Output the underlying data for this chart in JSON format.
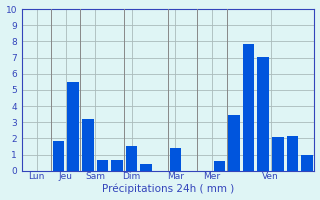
{
  "bars": [
    {
      "x": 1,
      "value": 0.0
    },
    {
      "x": 2,
      "value": 0.0
    },
    {
      "x": 3,
      "value": 1.85
    },
    {
      "x": 4,
      "value": 5.5
    },
    {
      "x": 5,
      "value": 3.2
    },
    {
      "x": 6,
      "value": 0.65
    },
    {
      "x": 7,
      "value": 0.65
    },
    {
      "x": 8,
      "value": 1.55
    },
    {
      "x": 9,
      "value": 0.45
    },
    {
      "x": 10,
      "value": 0.0
    },
    {
      "x": 11,
      "value": 1.4
    },
    {
      "x": 12,
      "value": 0.0
    },
    {
      "x": 13,
      "value": 0.0
    },
    {
      "x": 14,
      "value": 0.6
    },
    {
      "x": 15,
      "value": 3.45
    },
    {
      "x": 16,
      "value": 7.85
    },
    {
      "x": 17,
      "value": 7.05
    },
    {
      "x": 18,
      "value": 2.1
    },
    {
      "x": 19,
      "value": 2.15
    },
    {
      "x": 20,
      "value": 1.0
    }
  ],
  "vlines": [
    2.5,
    4.5,
    7.5,
    10.5,
    12.5,
    14.5
  ],
  "bar_color": "#0055dd",
  "bar_width": 0.8,
  "xlabel": "Précipitations 24h ( mm )",
  "ylim": [
    0,
    10
  ],
  "yticks": [
    0,
    1,
    2,
    3,
    4,
    5,
    6,
    7,
    8,
    9,
    10
  ],
  "day_tick_positions": [
    1.5,
    3.5,
    5.5,
    8.0,
    11.0,
    13.5,
    17.5
  ],
  "day_labels": [
    "Lun",
    "Jeu",
    "Sam",
    "Dim",
    "Mar",
    "Mer",
    "Ven"
  ],
  "bg_color": "#dff5f5",
  "grid_color": "#aabbbb",
  "vline_color": "#888888",
  "text_color": "#3344bb",
  "xlabel_fontsize": 7.5,
  "ytick_fontsize": 6.5,
  "xtick_fontsize": 6.5,
  "xlim": [
    0.5,
    20.5
  ]
}
